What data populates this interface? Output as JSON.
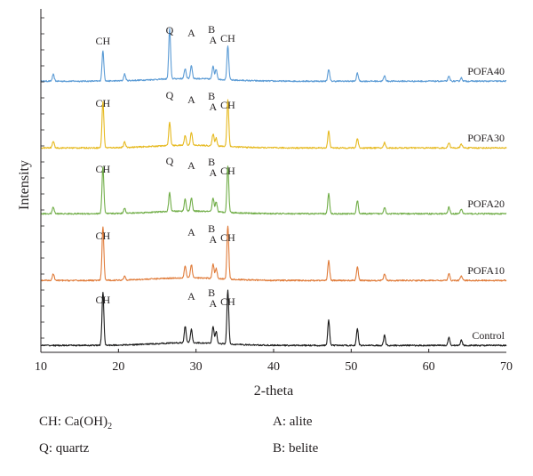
{
  "chart_data": {
    "type": "line",
    "xlabel": "2-theta",
    "ylabel": "Intensity",
    "xlim": [
      10,
      70
    ],
    "x_ticks": [
      "10",
      "20",
      "30",
      "40",
      "50",
      "60",
      "70"
    ],
    "grid": "none",
    "series": [
      {
        "name": "POFA40",
        "color": "#5b9bd5",
        "peaks": [
          [
            11.6,
            0.1
          ],
          [
            18.0,
            0.45
          ],
          [
            20.8,
            0.1
          ],
          [
            26.6,
            0.75
          ],
          [
            28.6,
            0.15
          ],
          [
            29.4,
            0.2
          ],
          [
            32.2,
            0.2
          ],
          [
            32.6,
            0.15
          ],
          [
            34.1,
            0.5
          ],
          [
            47.1,
            0.18
          ],
          [
            50.8,
            0.12
          ],
          [
            54.3,
            0.08
          ],
          [
            62.6,
            0.07
          ],
          [
            64.2,
            0.05
          ]
        ],
        "annotations": [
          {
            "label": "CH",
            "x": 18.0
          },
          {
            "label": "Q",
            "x": 26.6
          },
          {
            "label": "A",
            "x": 29.4
          },
          {
            "label": "B",
            "x": 32.0
          },
          {
            "label": "A",
            "x": 32.2
          },
          {
            "label": "CH",
            "x": 34.1
          }
        ]
      },
      {
        "name": "POFA30",
        "color": "#e6b91e",
        "peaks": [
          [
            11.6,
            0.1
          ],
          [
            18.0,
            0.7
          ],
          [
            20.8,
            0.08
          ],
          [
            26.6,
            0.35
          ],
          [
            28.6,
            0.15
          ],
          [
            29.4,
            0.2
          ],
          [
            32.2,
            0.18
          ],
          [
            32.6,
            0.12
          ],
          [
            34.1,
            0.7
          ],
          [
            47.1,
            0.25
          ],
          [
            50.8,
            0.14
          ],
          [
            54.3,
            0.08
          ],
          [
            62.6,
            0.08
          ],
          [
            64.2,
            0.06
          ]
        ],
        "annotations": [
          {
            "label": "CH",
            "x": 18.0
          },
          {
            "label": "Q",
            "x": 26.6
          },
          {
            "label": "A",
            "x": 29.4
          },
          {
            "label": "B",
            "x": 32.0
          },
          {
            "label": "A",
            "x": 32.2
          },
          {
            "label": "CH",
            "x": 34.1
          }
        ]
      },
      {
        "name": "POFA20",
        "color": "#70ad47",
        "peaks": [
          [
            11.6,
            0.1
          ],
          [
            18.0,
            0.7
          ],
          [
            20.8,
            0.08
          ],
          [
            26.6,
            0.28
          ],
          [
            28.6,
            0.18
          ],
          [
            29.4,
            0.2
          ],
          [
            32.2,
            0.2
          ],
          [
            32.6,
            0.15
          ],
          [
            34.1,
            0.7
          ],
          [
            47.1,
            0.3
          ],
          [
            50.8,
            0.2
          ],
          [
            54.3,
            0.1
          ],
          [
            62.6,
            0.1
          ],
          [
            64.2,
            0.07
          ]
        ],
        "annotations": [
          {
            "label": "CH",
            "x": 18.0
          },
          {
            "label": "Q",
            "x": 26.6
          },
          {
            "label": "A",
            "x": 29.4
          },
          {
            "label": "B",
            "x": 32.0
          },
          {
            "label": "A",
            "x": 32.2
          },
          {
            "label": "CH",
            "x": 34.1
          }
        ]
      },
      {
        "name": "POFA10",
        "color": "#e07b39",
        "peaks": [
          [
            11.6,
            0.1
          ],
          [
            18.0,
            0.8
          ],
          [
            20.8,
            0.06
          ],
          [
            28.6,
            0.18
          ],
          [
            29.4,
            0.2
          ],
          [
            32.2,
            0.22
          ],
          [
            32.6,
            0.15
          ],
          [
            34.1,
            0.8
          ],
          [
            47.1,
            0.3
          ],
          [
            50.8,
            0.2
          ],
          [
            54.3,
            0.1
          ],
          [
            62.6,
            0.1
          ],
          [
            64.2,
            0.07
          ]
        ],
        "annotations": [
          {
            "label": "CH",
            "x": 18.0
          },
          {
            "label": "A",
            "x": 29.4
          },
          {
            "label": "B",
            "x": 32.0
          },
          {
            "label": "A",
            "x": 32.2
          },
          {
            "label": "CH",
            "x": 34.1
          }
        ]
      },
      {
        "name": "Control",
        "color": "#1a1a1a",
        "peaks": [
          [
            18.0,
            0.8
          ],
          [
            28.6,
            0.25
          ],
          [
            29.4,
            0.2
          ],
          [
            32.2,
            0.25
          ],
          [
            32.6,
            0.18
          ],
          [
            34.1,
            0.8
          ],
          [
            47.1,
            0.38
          ],
          [
            50.8,
            0.25
          ],
          [
            54.3,
            0.15
          ],
          [
            62.6,
            0.12
          ],
          [
            64.2,
            0.08
          ]
        ],
        "annotations": [
          {
            "label": "CH",
            "x": 18.0
          },
          {
            "label": "A",
            "x": 29.4
          },
          {
            "label": "B",
            "x": 32.0
          },
          {
            "label": "A",
            "x": 32.2
          },
          {
            "label": "CH",
            "x": 34.1
          }
        ]
      }
    ],
    "legend": [
      {
        "key": "CH",
        "desc": "Ca(OH)",
        "sub": "2"
      },
      {
        "key": "A",
        "desc": "alite",
        "sub": ""
      },
      {
        "key": "Q",
        "desc": "quartz",
        "sub": ""
      },
      {
        "key": "B",
        "desc": "belite",
        "sub": ""
      }
    ]
  }
}
